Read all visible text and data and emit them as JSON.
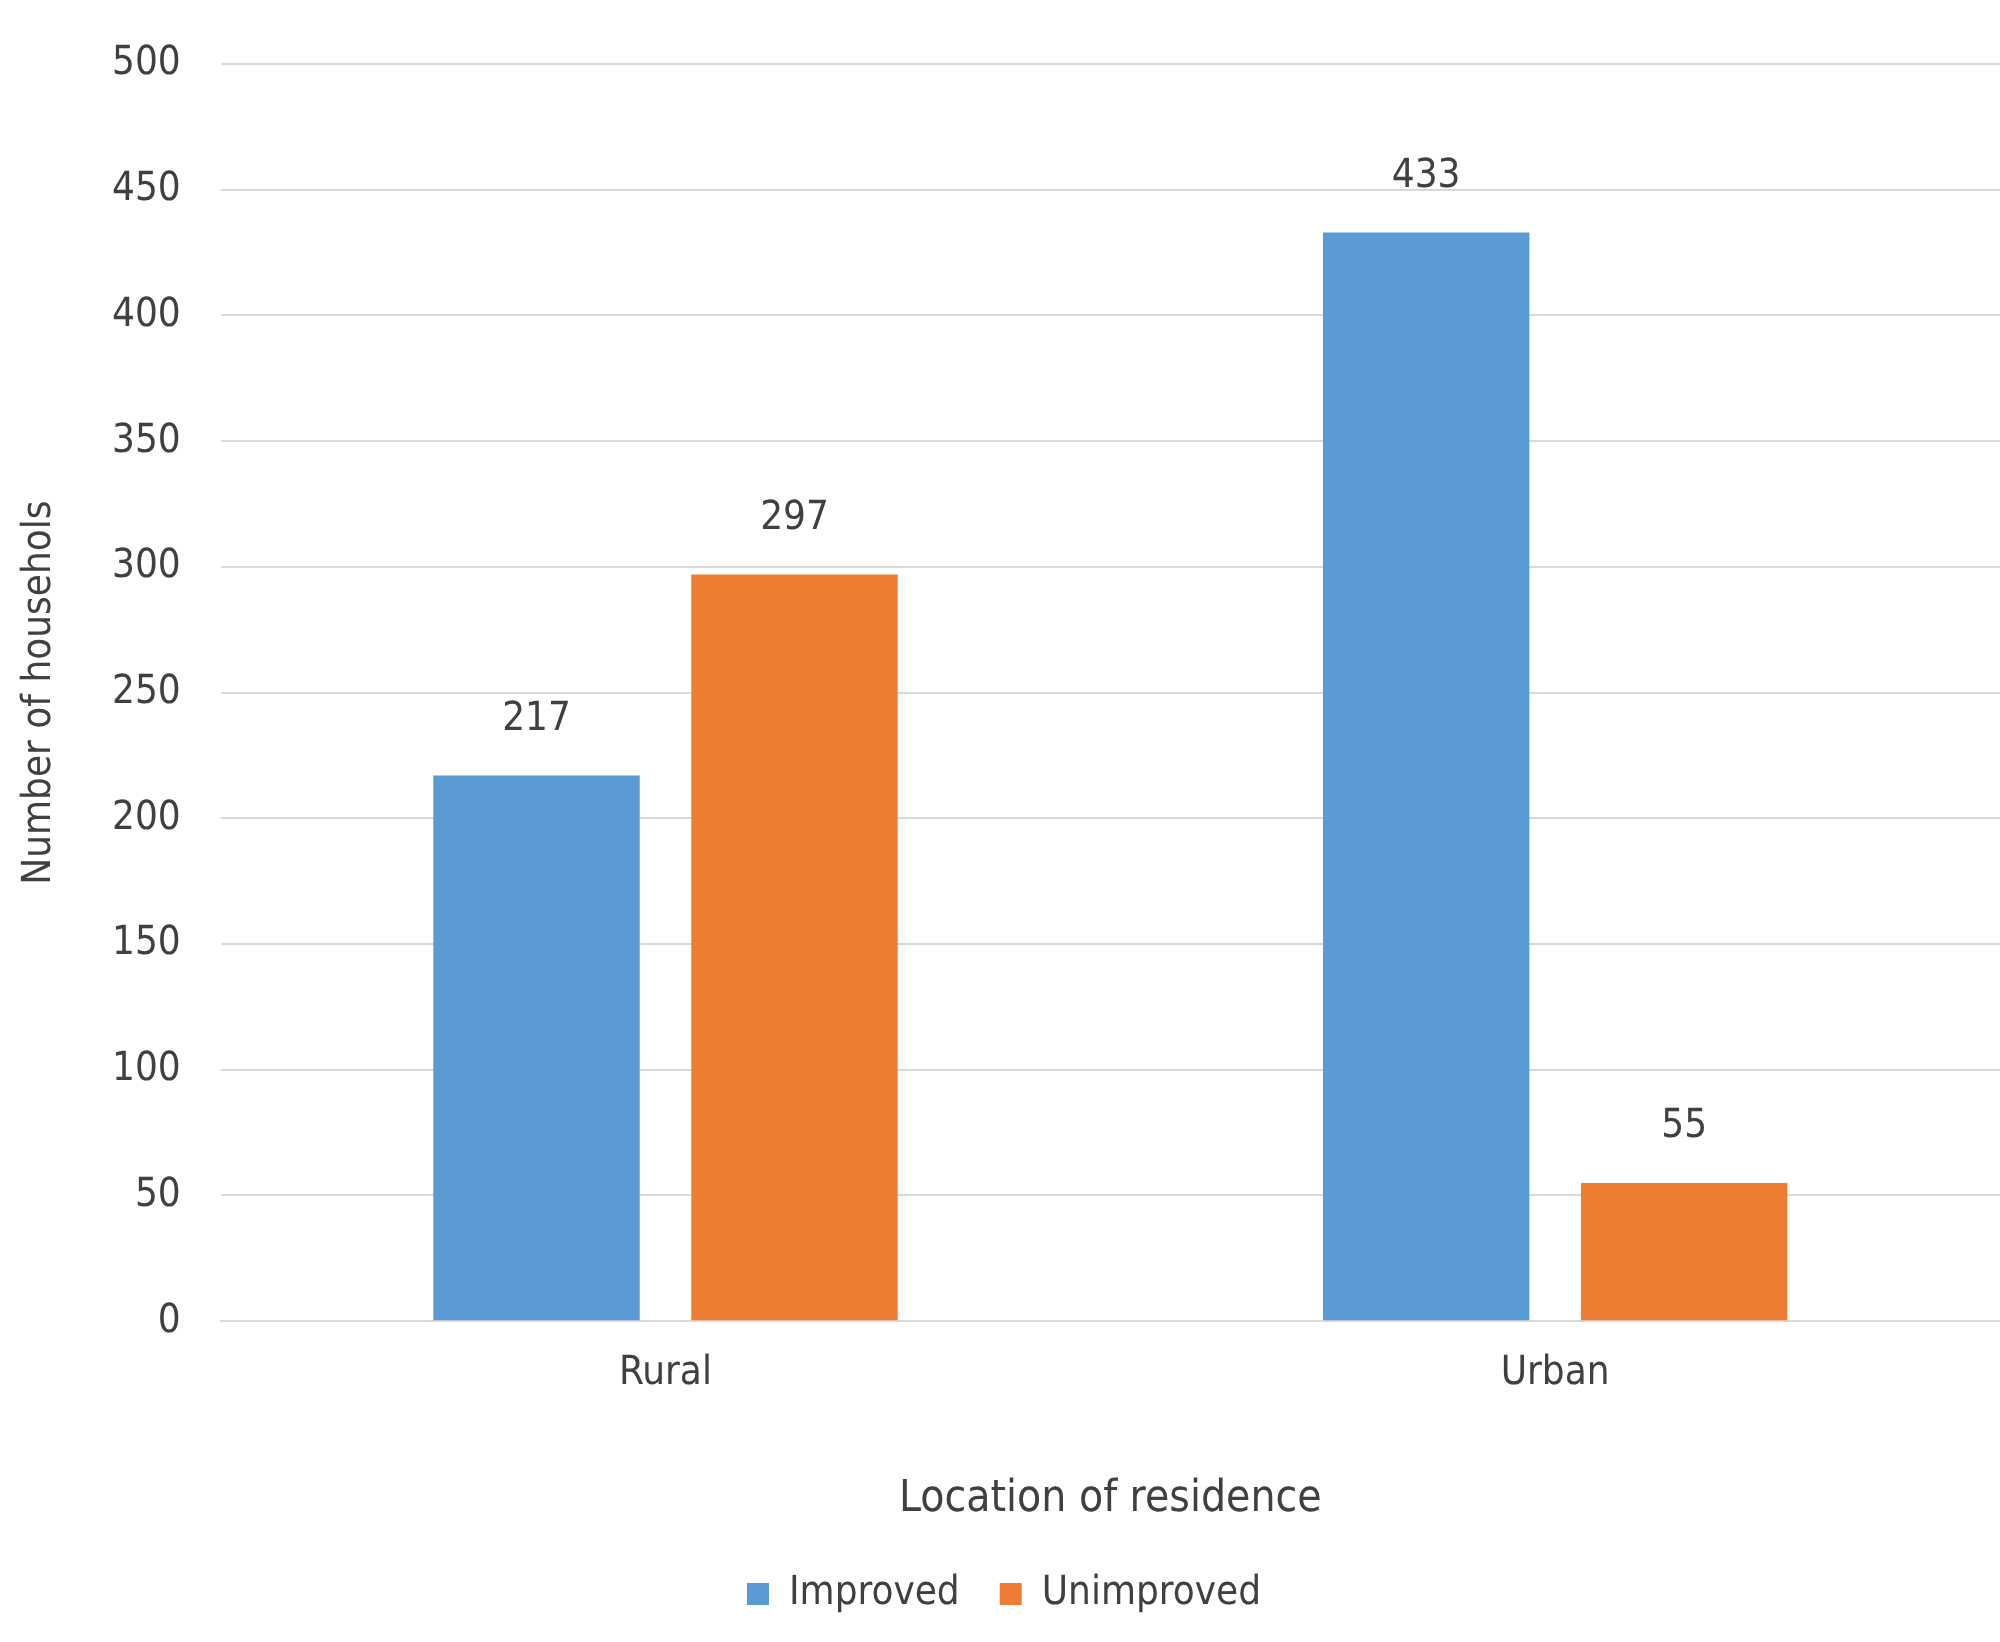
{
  "chart_data": {
    "type": "bar",
    "xlabel": "Location of residence",
    "ylabel": "Number of househols",
    "categories": [
      "Rural",
      "Urban"
    ],
    "series": [
      {
        "name": "Improved",
        "color": "#5b9bd5",
        "values": [
          217,
          433
        ]
      },
      {
        "name": "Unimproved",
        "color": "#ed7d31",
        "values": [
          297,
          55
        ]
      }
    ],
    "ylim": [
      0,
      500
    ],
    "yticks": [
      0,
      50,
      100,
      150,
      200,
      250,
      300,
      350,
      400,
      450,
      500
    ],
    "grid": "y",
    "legend": "bottom",
    "data_labels": true
  }
}
